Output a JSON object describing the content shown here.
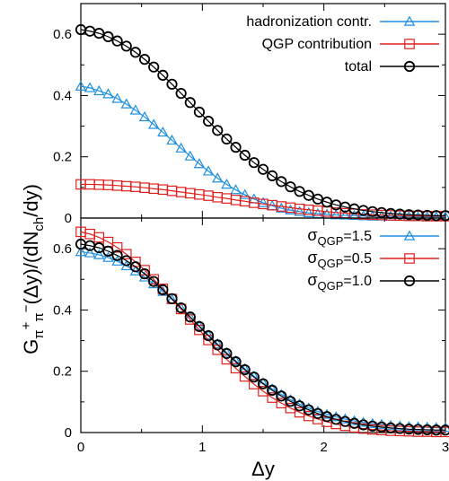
{
  "chart_data": [
    {
      "type": "line",
      "panel": "top",
      "xlabel": "",
      "ylabel": "",
      "xlim": [
        0,
        3
      ],
      "ylim": [
        0,
        0.7
      ],
      "yticks": [
        "0",
        "0.2",
        "0.4",
        "0.6"
      ],
      "grid": false,
      "legend_placement": "top-right",
      "series": [
        {
          "name": "hadronization contr.",
          "color": "#1f8fe0",
          "marker": "triangle",
          "x": [
            0,
            0.075,
            0.15,
            0.225,
            0.3,
            0.375,
            0.45,
            0.525,
            0.6,
            0.675,
            0.75,
            0.825,
            0.9,
            0.975,
            1.05,
            1.125,
            1.2,
            1.275,
            1.35,
            1.425,
            1.5,
            1.575,
            1.65,
            1.725,
            1.8,
            1.875,
            1.95,
            2.025,
            2.1,
            2.175,
            2.25,
            2.325,
            2.4,
            2.475,
            2.55,
            2.625,
            2.7,
            2.775,
            2.85,
            2.925,
            3.0
          ],
          "values": [
            0.43,
            0.425,
            0.415,
            0.405,
            0.39,
            0.372,
            0.352,
            0.33,
            0.305,
            0.28,
            0.254,
            0.228,
            0.202,
            0.177,
            0.153,
            0.13,
            0.11,
            0.092,
            0.076,
            0.062,
            0.05,
            0.04,
            0.032,
            0.026,
            0.021,
            0.017,
            0.014,
            0.012,
            0.01,
            0.009,
            0.008,
            0.007,
            0.006,
            0.006,
            0.005,
            0.005,
            0.005,
            0.004,
            0.004,
            0.004,
            0.004
          ]
        },
        {
          "name": "QGP contribution",
          "color": "#e0201c",
          "marker": "square",
          "x": [
            0,
            0.075,
            0.15,
            0.225,
            0.3,
            0.375,
            0.45,
            0.525,
            0.6,
            0.675,
            0.75,
            0.825,
            0.9,
            0.975,
            1.05,
            1.125,
            1.2,
            1.275,
            1.35,
            1.425,
            1.5,
            1.575,
            1.65,
            1.725,
            1.8,
            1.875,
            1.95,
            2.025,
            2.1,
            2.175,
            2.25,
            2.325,
            2.4,
            2.475,
            2.55,
            2.625,
            2.7,
            2.775,
            2.85,
            2.925,
            3.0
          ],
          "values": [
            0.11,
            0.11,
            0.109,
            0.108,
            0.106,
            0.104,
            0.102,
            0.099,
            0.096,
            0.093,
            0.089,
            0.085,
            0.081,
            0.077,
            0.073,
            0.068,
            0.064,
            0.059,
            0.055,
            0.05,
            0.046,
            0.042,
            0.038,
            0.034,
            0.03,
            0.027,
            0.024,
            0.021,
            0.018,
            0.016,
            0.014,
            0.012,
            0.011,
            0.01,
            0.009,
            0.008,
            0.007,
            0.007,
            0.006,
            0.006,
            0.006
          ]
        },
        {
          "name": "total",
          "color": "#000000",
          "marker": "circle",
          "x": [
            0,
            0.075,
            0.15,
            0.225,
            0.3,
            0.375,
            0.45,
            0.525,
            0.6,
            0.675,
            0.75,
            0.825,
            0.9,
            0.975,
            1.05,
            1.125,
            1.2,
            1.275,
            1.35,
            1.425,
            1.5,
            1.575,
            1.65,
            1.725,
            1.8,
            1.875,
            1.95,
            2.025,
            2.1,
            2.175,
            2.25,
            2.325,
            2.4,
            2.475,
            2.55,
            2.625,
            2.7,
            2.775,
            2.85,
            2.925,
            3.0
          ],
          "values": [
            0.615,
            0.61,
            0.603,
            0.592,
            0.578,
            0.561,
            0.541,
            0.518,
            0.493,
            0.466,
            0.437,
            0.407,
            0.377,
            0.346,
            0.316,
            0.286,
            0.258,
            0.231,
            0.205,
            0.181,
            0.159,
            0.138,
            0.119,
            0.102,
            0.087,
            0.074,
            0.062,
            0.052,
            0.043,
            0.036,
            0.03,
            0.025,
            0.021,
            0.018,
            0.015,
            0.013,
            0.011,
            0.01,
            0.009,
            0.008,
            0.008
          ]
        }
      ]
    },
    {
      "type": "line",
      "panel": "bottom",
      "xlabel": "Δy",
      "ylabel": "",
      "xlim": [
        0,
        3
      ],
      "ylim": [
        0,
        0.7
      ],
      "xticks": [
        "0",
        "1",
        "2",
        "3"
      ],
      "yticks": [
        "0",
        "0.2",
        "0.4",
        "0.6"
      ],
      "grid": false,
      "legend_placement": "top-right",
      "series": [
        {
          "name_prefix": "σ",
          "name_sub": "QGP",
          "name_suffix": "=1.5",
          "color": "#1f8fe0",
          "marker": "triangle",
          "x": [
            0,
            0.075,
            0.15,
            0.225,
            0.3,
            0.375,
            0.45,
            0.525,
            0.6,
            0.675,
            0.75,
            0.825,
            0.9,
            0.975,
            1.05,
            1.125,
            1.2,
            1.275,
            1.35,
            1.425,
            1.5,
            1.575,
            1.65,
            1.725,
            1.8,
            1.875,
            1.95,
            2.025,
            2.1,
            2.175,
            2.25,
            2.325,
            2.4,
            2.475,
            2.55,
            2.625,
            2.7,
            2.775,
            2.85,
            2.925,
            3.0
          ],
          "values": [
            0.59,
            0.586,
            0.58,
            0.571,
            0.559,
            0.544,
            0.527,
            0.507,
            0.485,
            0.46,
            0.434,
            0.406,
            0.377,
            0.348,
            0.318,
            0.289,
            0.261,
            0.234,
            0.208,
            0.184,
            0.162,
            0.142,
            0.124,
            0.107,
            0.093,
            0.08,
            0.069,
            0.059,
            0.051,
            0.044,
            0.038,
            0.033,
            0.029,
            0.026,
            0.023,
            0.021,
            0.019,
            0.018,
            0.017,
            0.016,
            0.016
          ]
        },
        {
          "name_prefix": "σ",
          "name_sub": "QGP",
          "name_suffix": "=0.5",
          "color": "#e0201c",
          "marker": "square",
          "x": [
            0,
            0.075,
            0.15,
            0.225,
            0.3,
            0.375,
            0.45,
            0.525,
            0.6,
            0.675,
            0.75,
            0.825,
            0.9,
            0.975,
            1.05,
            1.125,
            1.2,
            1.275,
            1.35,
            1.425,
            1.5,
            1.575,
            1.65,
            1.725,
            1.8,
            1.875,
            1.95,
            2.025,
            2.1,
            2.175,
            2.25,
            2.325,
            2.4,
            2.475,
            2.55,
            2.625,
            2.7,
            2.775,
            2.85,
            2.925,
            3.0
          ],
          "values": [
            0.655,
            0.648,
            0.637,
            0.622,
            0.604,
            0.582,
            0.557,
            0.53,
            0.5,
            0.469,
            0.436,
            0.403,
            0.369,
            0.335,
            0.302,
            0.27,
            0.239,
            0.21,
            0.183,
            0.158,
            0.135,
            0.114,
            0.096,
            0.08,
            0.066,
            0.054,
            0.044,
            0.035,
            0.028,
            0.022,
            0.017,
            0.013,
            0.01,
            0.008,
            0.006,
            0.005,
            0.004,
            0.003,
            0.003,
            0.002,
            0.002
          ]
        },
        {
          "name_prefix": "σ",
          "name_sub": "QGP",
          "name_suffix": "=1.0",
          "color": "#000000",
          "marker": "circle",
          "x": [
            0,
            0.075,
            0.15,
            0.225,
            0.3,
            0.375,
            0.45,
            0.525,
            0.6,
            0.675,
            0.75,
            0.825,
            0.9,
            0.975,
            1.05,
            1.125,
            1.2,
            1.275,
            1.35,
            1.425,
            1.5,
            1.575,
            1.65,
            1.725,
            1.8,
            1.875,
            1.95,
            2.025,
            2.1,
            2.175,
            2.25,
            2.325,
            2.4,
            2.475,
            2.55,
            2.625,
            2.7,
            2.775,
            2.85,
            2.925,
            3.0
          ],
          "values": [
            0.615,
            0.61,
            0.603,
            0.592,
            0.578,
            0.561,
            0.541,
            0.518,
            0.493,
            0.466,
            0.437,
            0.407,
            0.377,
            0.346,
            0.316,
            0.286,
            0.258,
            0.231,
            0.205,
            0.181,
            0.159,
            0.138,
            0.119,
            0.102,
            0.087,
            0.074,
            0.062,
            0.052,
            0.043,
            0.036,
            0.03,
            0.025,
            0.021,
            0.018,
            0.015,
            0.013,
            0.011,
            0.01,
            0.009,
            0.008,
            0.008
          ]
        }
      ]
    }
  ],
  "shared_ylabel": {
    "g": "G",
    "sub": "π",
    "sup": "+",
    "sub2": "π",
    "sup2": "−",
    "rest": "(Δy)/(dN",
    "ch": "ch",
    "tail": "/dy)"
  }
}
